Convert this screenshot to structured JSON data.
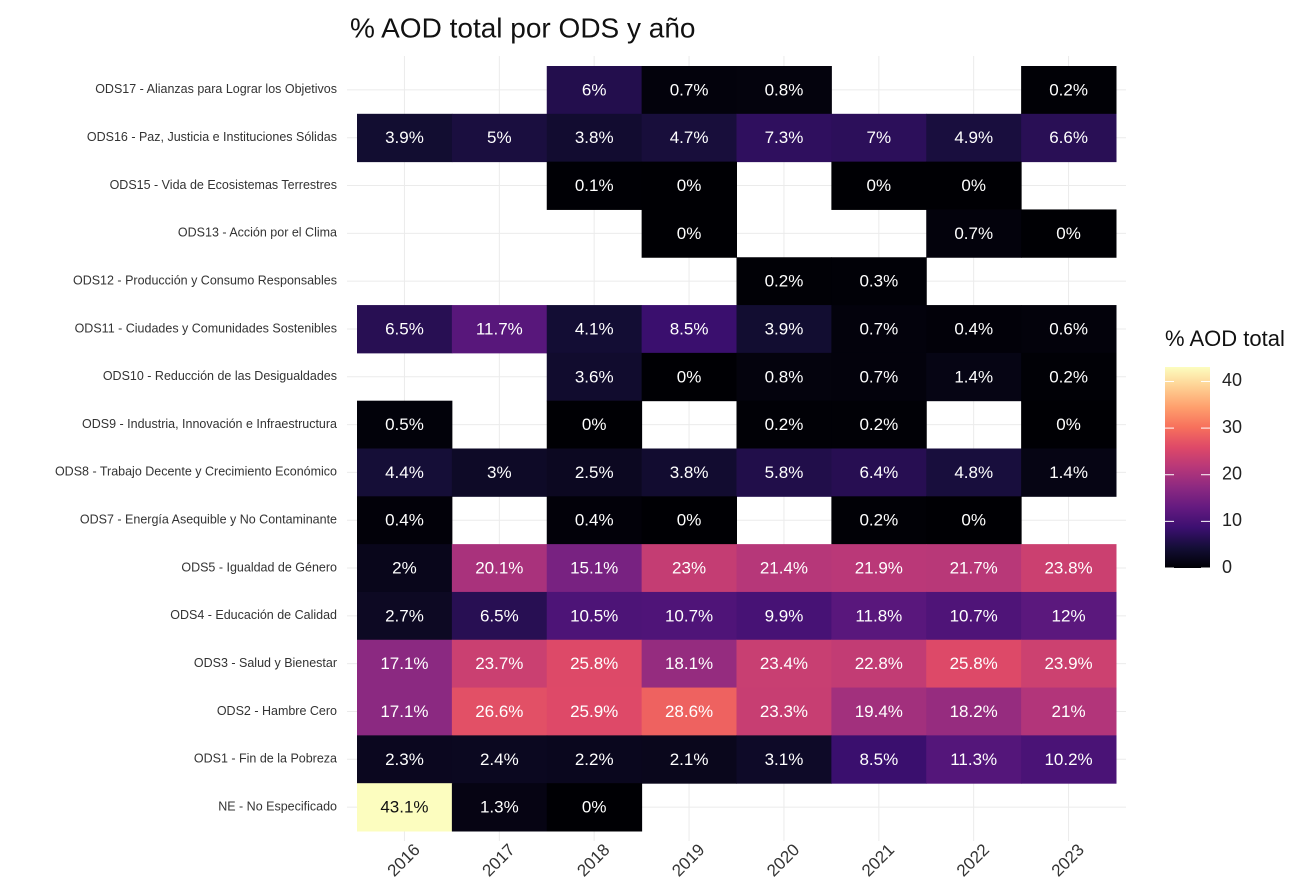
{
  "chart_data": {
    "type": "heatmap",
    "title": "% AOD total por ODS y año",
    "legend_title": "% AOD total",
    "categories": [
      "2016",
      "2017",
      "2018",
      "2019",
      "2020",
      "2021",
      "2022",
      "2023"
    ],
    "rows": [
      "ODS17 - Alianzas para Lograr los Objetivos",
      "ODS16 - Paz, Justicia e Instituciones Sólidas",
      "ODS15 - Vida de Ecosistemas Terrestres",
      "ODS13 - Acción por el Clima",
      "ODS12 - Producción y Consumo Responsables",
      "ODS11 - Ciudades y Comunidades Sostenibles",
      "ODS10 - Reducción de las Desigualdades",
      "ODS9 - Industria, Innovación e Infraestructura",
      "ODS8 - Trabajo Decente y Crecimiento Económico",
      "ODS7 - Energía Asequible y No Contaminante",
      "ODS5 - Igualdad de Género",
      "ODS4 - Educación de Calidad",
      "ODS3 - Salud y Bienestar",
      "ODS2 - Hambre Cero",
      "ODS1 - Fin de la Pobreza",
      "NE - No Especificado"
    ],
    "values": [
      [
        null,
        null,
        6,
        0.7,
        0.8,
        null,
        null,
        0.2
      ],
      [
        3.9,
        5,
        3.8,
        4.7,
        7.3,
        7,
        4.9,
        6.6
      ],
      [
        null,
        null,
        0.1,
        0,
        null,
        0,
        0,
        null
      ],
      [
        null,
        null,
        null,
        0,
        null,
        null,
        0.7,
        0
      ],
      [
        null,
        null,
        null,
        null,
        0.2,
        0.3,
        null,
        null
      ],
      [
        6.5,
        11.7,
        4.1,
        8.5,
        3.9,
        0.7,
        0.4,
        0.6
      ],
      [
        null,
        null,
        3.6,
        0,
        0.8,
        0.7,
        1.4,
        0.2
      ],
      [
        0.5,
        null,
        0,
        null,
        0.2,
        0.2,
        null,
        0
      ],
      [
        4.4,
        3,
        2.5,
        3.8,
        5.8,
        6.4,
        4.8,
        1.4
      ],
      [
        0.4,
        null,
        0.4,
        0,
        null,
        0.2,
        0,
        null
      ],
      [
        2,
        20.1,
        15.1,
        23,
        21.4,
        21.9,
        21.7,
        23.8
      ],
      [
        2.7,
        6.5,
        10.5,
        10.7,
        9.9,
        11.8,
        10.7,
        12
      ],
      [
        17.1,
        23.7,
        25.8,
        18.1,
        23.4,
        22.8,
        25.8,
        23.9
      ],
      [
        17.1,
        26.6,
        25.9,
        28.6,
        23.3,
        19.4,
        18.2,
        21
      ],
      [
        2.3,
        2.4,
        2.2,
        2.1,
        3.1,
        8.5,
        11.3,
        10.2
      ],
      [
        43.1,
        1.3,
        0,
        null,
        null,
        null,
        null,
        null
      ]
    ],
    "value_labels": [
      [
        null,
        null,
        "6%",
        "0.7%",
        "0.8%",
        null,
        null,
        "0.2%"
      ],
      [
        "3.9%",
        "5%",
        "3.8%",
        "4.7%",
        "7.3%",
        "7%",
        "4.9%",
        "6.6%"
      ],
      [
        null,
        null,
        "0.1%",
        "0%",
        null,
        "0%",
        "0%",
        null
      ],
      [
        null,
        null,
        null,
        "0%",
        null,
        null,
        "0.7%",
        "0%"
      ],
      [
        null,
        null,
        null,
        null,
        "0.2%",
        "0.3%",
        null,
        null
      ],
      [
        "6.5%",
        "11.7%",
        "4.1%",
        "8.5%",
        "3.9%",
        "0.7%",
        "0.4%",
        "0.6%"
      ],
      [
        null,
        null,
        "3.6%",
        "0%",
        "0.8%",
        "0.7%",
        "1.4%",
        "0.2%"
      ],
      [
        "0.5%",
        null,
        "0%",
        null,
        "0.2%",
        "0.2%",
        null,
        "0%"
      ],
      [
        "4.4%",
        "3%",
        "2.5%",
        "3.8%",
        "5.8%",
        "6.4%",
        "4.8%",
        "1.4%"
      ],
      [
        "0.4%",
        null,
        "0.4%",
        "0%",
        null,
        "0.2%",
        "0%",
        null
      ],
      [
        "2%",
        "20.1%",
        "15.1%",
        "23%",
        "21.4%",
        "21.9%",
        "21.7%",
        "23.8%"
      ],
      [
        "2.7%",
        "6.5%",
        "10.5%",
        "10.7%",
        "9.9%",
        "11.8%",
        "10.7%",
        "12%"
      ],
      [
        "17.1%",
        "23.7%",
        "25.8%",
        "18.1%",
        "23.4%",
        "22.8%",
        "25.8%",
        "23.9%"
      ],
      [
        "17.1%",
        "26.6%",
        "25.9%",
        "28.6%",
        "23.3%",
        "19.4%",
        "18.2%",
        "21%"
      ],
      [
        "2.3%",
        "2.4%",
        "2.2%",
        "2.1%",
        "3.1%",
        "8.5%",
        "11.3%",
        "10.2%"
      ],
      [
        "43.1%",
        "1.3%",
        "0%",
        null,
        null,
        null,
        null,
        null
      ]
    ],
    "colormap": "magma",
    "clim": [
      0,
      43.1
    ],
    "cticks": [
      0,
      10,
      20,
      30,
      40
    ],
    "grid": true
  }
}
